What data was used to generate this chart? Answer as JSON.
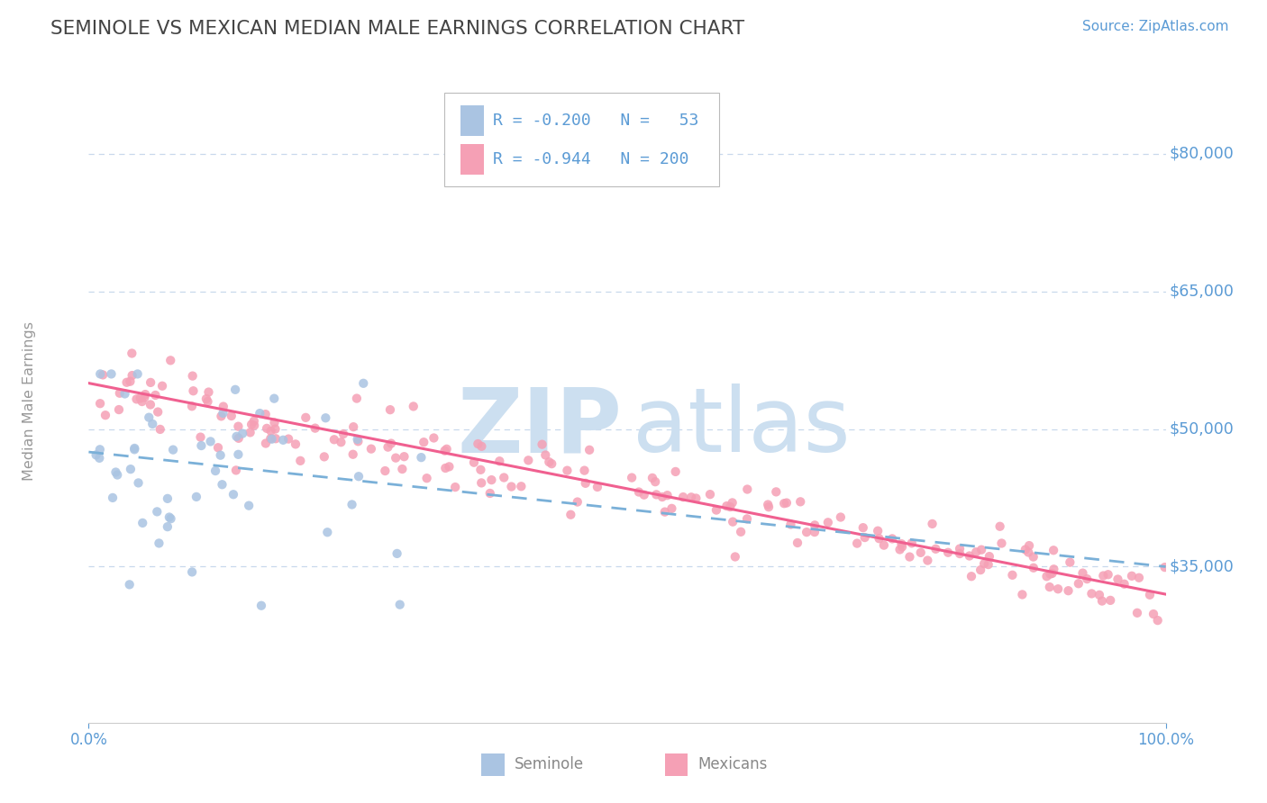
{
  "title": "SEMINOLE VS MEXICAN MEDIAN MALE EARNINGS CORRELATION CHART",
  "source": "Source: ZipAtlas.com",
  "ylabel": "Median Male Earnings",
  "xlim": [
    0.0,
    1.0
  ],
  "ylim": [
    18000,
    88000
  ],
  "seminole_R": -0.2,
  "seminole_N": 53,
  "mexican_R": -0.944,
  "mexican_N": 200,
  "seminole_color": "#aac4e2",
  "mexican_color": "#f5a0b5",
  "seminole_line_color": "#7ab0d8",
  "mexican_line_color": "#f06090",
  "bg_color": "#ffffff",
  "grid_color": "#c8d8ec",
  "title_color": "#444444",
  "axis_label_color": "#5b9bd5",
  "legend_text_color": "#5b9bd5",
  "ytick_vals": [
    35000,
    50000,
    65000,
    80000
  ],
  "ytick_labels": [
    "$35,000",
    "$50,000",
    "$65,000",
    "$80,000"
  ],
  "seminole_line_x0": 0.0,
  "seminole_line_x1": 1.0,
  "seminole_line_y0": 47500,
  "seminole_line_y1": 35000,
  "mexican_line_x0": 0.0,
  "mexican_line_x1": 1.0,
  "mexican_line_y0": 55000,
  "mexican_line_y1": 32000
}
